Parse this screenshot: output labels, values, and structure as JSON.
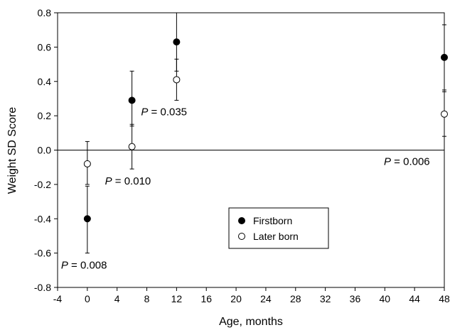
{
  "chart_data": {
    "type": "scatter",
    "xlabel": "Age, months",
    "ylabel": "Weight SD Score",
    "xlim": [
      -4,
      48
    ],
    "ylim": [
      -0.8,
      0.8
    ],
    "x_ticks": [
      "-4",
      "0",
      "4",
      "8",
      "12",
      "16",
      "20",
      "24",
      "28",
      "32",
      "36",
      "40",
      "44",
      "48"
    ],
    "y_ticks": [
      "-0.8",
      "-0.6",
      "-0.4",
      "-0.2",
      "0.0",
      "0.2",
      "0.4",
      "0.6",
      "0.8"
    ],
    "reference_line_y": 0,
    "legend_position": "center",
    "series": [
      {
        "name": "Firstborn",
        "marker": "filled-circle",
        "points": [
          {
            "x": 0,
            "y": -0.4,
            "err_low": -0.6,
            "err_high": -0.21
          },
          {
            "x": 6,
            "y": 0.29,
            "err_low": 0.14,
            "err_high": 0.46
          },
          {
            "x": 12,
            "y": 0.63,
            "err_low": 0.46,
            "err_high": 0.8
          },
          {
            "x": 48,
            "y": 0.54,
            "err_low": 0.35,
            "err_high": 0.73
          }
        ]
      },
      {
        "name": "Later born",
        "marker": "open-circle",
        "points": [
          {
            "x": 0,
            "y": -0.08,
            "err_low": -0.2,
            "err_high": 0.05
          },
          {
            "x": 6,
            "y": 0.02,
            "err_low": -0.11,
            "err_high": 0.15
          },
          {
            "x": 12,
            "y": 0.41,
            "err_low": 0.29,
            "err_high": 0.53
          },
          {
            "x": 48,
            "y": 0.21,
            "err_low": 0.08,
            "err_high": 0.34
          }
        ]
      }
    ],
    "annotations": [
      {
        "prefix": "P",
        "text": " = 0.008",
        "x": 0,
        "y": -0.6
      },
      {
        "prefix": "P",
        "text": " = 0.010",
        "x": 6,
        "y": -0.11
      },
      {
        "prefix": "P",
        "text": " = 0.035",
        "x": 12,
        "y": 0.29
      },
      {
        "prefix": "P",
        "text": " = 0.006",
        "x": 48,
        "y": 0.0
      }
    ]
  }
}
